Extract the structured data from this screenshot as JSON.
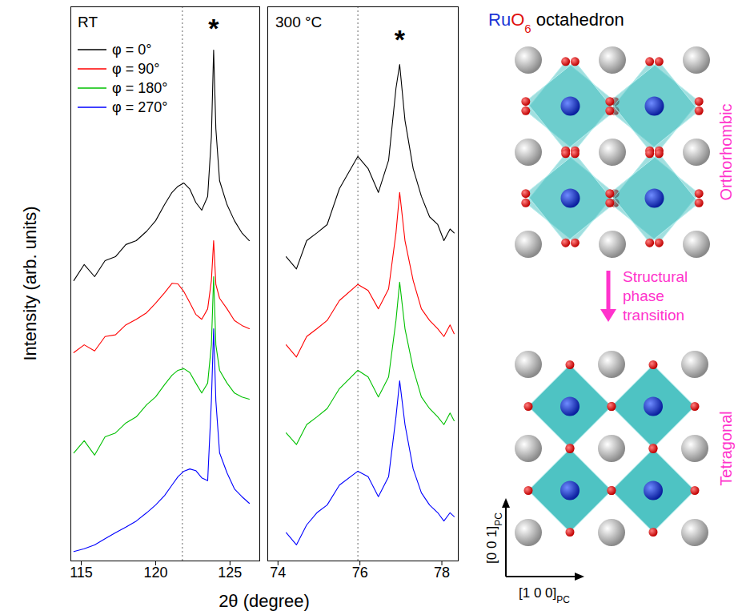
{
  "chart_data": [
    {
      "type": "line",
      "title": "RT",
      "y_label": "Intensity (arb. units)",
      "x_label": "2θ (degree)",
      "x": [
        114.5,
        115.2,
        115.9,
        116.6,
        117.3,
        118.0,
        118.7,
        119.4,
        120.0,
        120.6,
        121.1,
        121.5,
        121.9,
        122.3,
        122.7,
        123.1,
        123.5,
        123.75,
        123.9,
        124.05,
        124.3,
        124.8,
        125.3,
        125.8,
        126.3
      ],
      "series": [
        {
          "name": "φ = 0°",
          "color": "#000000",
          "values": [
            50.6,
            53.5,
            51.3,
            54.2,
            54.9,
            57.1,
            57.8,
            59.5,
            61.4,
            64.3,
            66.5,
            67.6,
            68.2,
            67.1,
            64.7,
            63.3,
            65.8,
            76.6,
            92.2,
            78.0,
            68.6,
            64.3,
            61.4,
            59.2,
            57.8
          ]
        },
        {
          "name": "φ = 90°",
          "color": "#ff0000",
          "values": [
            37.6,
            39.0,
            37.9,
            40.5,
            40.8,
            42.6,
            43.6,
            44.8,
            46.5,
            48.4,
            50.1,
            50.0,
            48.6,
            46.6,
            44.5,
            43.6,
            45.5,
            50.6,
            57.8,
            49.9,
            47.4,
            45.5,
            43.4,
            42.5,
            41.9
          ]
        },
        {
          "name": "φ = 180°",
          "color": "#00c000",
          "values": [
            19.5,
            21.7,
            19.1,
            22.4,
            23.1,
            24.9,
            26.0,
            28.2,
            29.6,
            31.8,
            33.5,
            34.4,
            34.7,
            34.0,
            32.1,
            30.3,
            32.1,
            39.0,
            51.3,
            39.0,
            34.4,
            32.1,
            30.3,
            29.6,
            29.2
          ]
        },
        {
          "name": "φ = 270°",
          "color": "#0000ff",
          "values": [
            1.7,
            2.2,
            2.9,
            4.0,
            5.1,
            6.1,
            7.2,
            8.7,
            10.1,
            11.8,
            13.7,
            15.2,
            16.2,
            16.6,
            16.3,
            15.0,
            14.5,
            28.9,
            41.9,
            28.9,
            19.5,
            15.9,
            13.0,
            11.6,
            10.4
          ]
        }
      ],
      "xlim": [
        114.3,
        127.0
      ],
      "xticks": [
        115,
        120,
        125
      ],
      "ylim": [
        0,
        100
      ],
      "tick_labels": "x",
      "legend": "top-left",
      "annotations": [
        {
          "text": "*",
          "x": 123.9,
          "y": 96
        }
      ],
      "reference_x": 121.8
    },
    {
      "type": "line",
      "title": "300 °C",
      "x": [
        74.2,
        74.45,
        74.7,
        74.95,
        75.2,
        75.5,
        75.95,
        76.2,
        76.45,
        76.7,
        76.88,
        76.97,
        77.1,
        77.3,
        77.5,
        77.7,
        77.9,
        78.05,
        78.2,
        78.3
      ],
      "series": [
        {
          "color": "#000000",
          "values": [
            54.9,
            52.7,
            57.8,
            59.2,
            60.7,
            67.2,
            73.0,
            70.8,
            66.5,
            72.3,
            85.3,
            89.6,
            79.5,
            70.8,
            65.8,
            62.1,
            60.7,
            57.8,
            59.9,
            59.2
          ]
        },
        {
          "color": "#ff0000",
          "values": [
            39.0,
            36.8,
            40.5,
            41.9,
            43.4,
            47.0,
            49.9,
            48.8,
            45.5,
            49.1,
            59.2,
            66.5,
            57.8,
            50.6,
            45.5,
            43.4,
            41.9,
            40.5,
            42.6,
            41.0
          ]
        },
        {
          "color": "#00c000",
          "values": [
            23.1,
            21.0,
            24.6,
            26.0,
            27.5,
            31.1,
            34.4,
            33.2,
            29.6,
            33.2,
            43.4,
            50.3,
            41.9,
            34.7,
            29.6,
            27.5,
            26.0,
            24.6,
            26.7,
            25.3
          ]
        },
        {
          "color": "#0000ff",
          "values": [
            5.1,
            2.9,
            6.5,
            8.7,
            10.1,
            13.7,
            16.2,
            15.2,
            11.6,
            15.2,
            26.0,
            32.5,
            24.6,
            16.6,
            12.3,
            10.1,
            8.7,
            7.2,
            8.7,
            8.0
          ]
        }
      ],
      "xlim": [
        73.75,
        78.4
      ],
      "xticks": [
        74,
        76,
        78
      ],
      "ylim": [
        0,
        100
      ],
      "tick_labels": "x",
      "annotations": [
        {
          "text": "*",
          "x": 76.97,
          "y": 94
        }
      ],
      "reference_x": 75.95
    }
  ],
  "diagram": {
    "title": [
      {
        "text": "Ru",
        "color": "#1a35d6"
      },
      {
        "text": "O",
        "color": "#e01010"
      },
      {
        "text": "6",
        "color": "#e01010",
        "subscript": true
      },
      {
        "text": " octahedron",
        "color": "#000000"
      }
    ],
    "structures": [
      {
        "label": "Orthorhombic"
      },
      {
        "label": "Tetragonal"
      }
    ],
    "transition_label": "Structural phase transition",
    "axes": [
      {
        "text": "[0 0 1]",
        "subscript": "PC"
      },
      {
        "text": "[1 0 0]",
        "subscript": "PC"
      }
    ]
  }
}
